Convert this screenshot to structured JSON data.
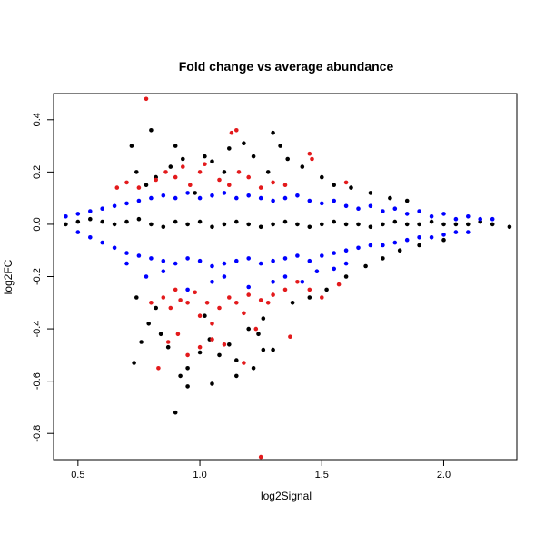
{
  "chart_data": {
    "type": "scatter",
    "title": "Fold change vs average abundance",
    "xlabel": "log2Signal",
    "ylabel": "log2FC",
    "xlim": [
      0.4,
      2.3
    ],
    "ylim": [
      -0.9,
      0.5
    ],
    "x_ticks": [
      0.5,
      1.0,
      1.5,
      2.0
    ],
    "x_tick_labels": [
      "0.5",
      "1.0",
      "1.5",
      "2.0"
    ],
    "y_ticks": [
      -0.8,
      -0.6,
      -0.4,
      -0.2,
      0.0,
      0.2,
      0.4
    ],
    "y_tick_labels": [
      "-0.8",
      "-0.6",
      "-0.4",
      "-0.2",
      "0.0",
      "0.2",
      "0.4"
    ],
    "grid": false,
    "legend": "none",
    "colors": {
      "black": "#000000",
      "blue": "#0000ff",
      "red": "#e31a1c"
    },
    "series": [
      {
        "color": "black",
        "x": [
          0.45,
          0.5,
          0.55,
          0.6,
          0.65,
          0.7,
          0.75,
          0.8,
          0.85,
          0.9,
          0.95,
          1.0,
          1.05,
          1.1,
          1.15,
          1.2,
          1.25,
          1.3,
          1.35,
          1.4,
          1.45,
          1.5,
          1.55,
          1.6,
          1.65,
          1.7,
          1.75,
          1.8,
          1.85,
          1.9,
          1.95,
          2.0,
          2.05,
          2.1,
          2.15,
          2.2,
          2.27,
          0.72,
          0.74,
          0.78,
          0.8,
          0.82,
          0.88,
          0.9,
          0.93,
          0.98,
          1.02,
          1.05,
          1.1,
          1.12,
          1.18,
          1.22,
          1.28,
          1.3,
          1.33,
          1.36,
          1.42,
          1.5,
          1.55,
          1.62,
          1.7,
          1.78,
          1.85,
          0.73,
          0.76,
          0.79,
          0.84,
          0.87,
          0.92,
          0.95,
          1.0,
          1.04,
          1.08,
          1.12,
          1.15,
          1.2,
          1.24,
          1.26,
          1.3,
          1.38,
          1.45,
          1.52,
          1.6,
          1.68,
          1.75,
          1.82,
          1.9,
          2.0,
          0.9,
          0.95,
          1.05,
          1.15,
          1.22,
          1.26,
          1.02,
          0.82,
          0.74
        ],
        "y": [
          0.0,
          0.01,
          0.02,
          0.01,
          0.0,
          0.01,
          0.02,
          0.0,
          -0.01,
          0.01,
          0.0,
          0.01,
          -0.01,
          0.0,
          0.01,
          0.0,
          -0.01,
          0.0,
          0.01,
          0.0,
          -0.01,
          0.0,
          0.01,
          0.0,
          0.0,
          -0.01,
          0.0,
          0.01,
          0.0,
          0.0,
          0.01,
          0.0,
          0.0,
          0.0,
          0.01,
          0.0,
          -0.01,
          0.3,
          0.2,
          0.15,
          0.36,
          0.18,
          0.22,
          0.3,
          0.25,
          0.12,
          0.26,
          0.24,
          0.2,
          0.29,
          0.31,
          0.26,
          0.2,
          0.35,
          0.3,
          0.25,
          0.22,
          0.18,
          0.15,
          0.14,
          0.12,
          0.1,
          0.09,
          -0.53,
          -0.45,
          -0.38,
          -0.42,
          -0.47,
          -0.58,
          -0.55,
          -0.49,
          -0.44,
          -0.5,
          -0.46,
          -0.52,
          -0.4,
          -0.42,
          -0.36,
          -0.48,
          -0.3,
          -0.28,
          -0.25,
          -0.2,
          -0.16,
          -0.13,
          -0.1,
          -0.08,
          -0.06,
          -0.72,
          -0.62,
          -0.61,
          -0.58,
          -0.55,
          -0.48,
          -0.35,
          -0.32,
          -0.28
        ]
      },
      {
        "color": "blue",
        "x": [
          0.45,
          0.5,
          0.55,
          0.6,
          0.65,
          0.7,
          0.75,
          0.8,
          0.85,
          0.9,
          0.95,
          1.0,
          1.05,
          1.1,
          1.15,
          1.2,
          1.25,
          1.3,
          1.35,
          1.4,
          1.45,
          1.5,
          1.55,
          1.6,
          1.65,
          1.7,
          1.75,
          1.8,
          1.85,
          1.9,
          1.95,
          2.0,
          2.05,
          2.1,
          2.15,
          2.2,
          0.5,
          0.55,
          0.6,
          0.65,
          0.7,
          0.75,
          0.8,
          0.85,
          0.9,
          0.95,
          1.0,
          1.05,
          1.1,
          1.15,
          1.2,
          1.25,
          1.3,
          1.35,
          1.4,
          1.45,
          1.5,
          1.55,
          1.6,
          1.65,
          1.7,
          1.75,
          1.8,
          1.85,
          1.9,
          1.95,
          2.0,
          2.05,
          2.1,
          0.7,
          0.78,
          0.85,
          0.95,
          1.05,
          1.1,
          1.2,
          1.3,
          1.35,
          1.42,
          1.48,
          1.55,
          1.6
        ],
        "y": [
          0.03,
          0.04,
          0.05,
          0.06,
          0.07,
          0.08,
          0.09,
          0.1,
          0.11,
          0.1,
          0.12,
          0.1,
          0.11,
          0.12,
          0.1,
          0.11,
          0.1,
          0.09,
          0.1,
          0.11,
          0.09,
          0.08,
          0.09,
          0.07,
          0.06,
          0.07,
          0.05,
          0.06,
          0.04,
          0.05,
          0.03,
          0.04,
          0.02,
          0.03,
          0.02,
          0.02,
          -0.03,
          -0.05,
          -0.07,
          -0.09,
          -0.11,
          -0.12,
          -0.13,
          -0.14,
          -0.15,
          -0.13,
          -0.14,
          -0.16,
          -0.15,
          -0.14,
          -0.13,
          -0.15,
          -0.14,
          -0.13,
          -0.12,
          -0.14,
          -0.12,
          -0.11,
          -0.1,
          -0.09,
          -0.08,
          -0.08,
          -0.07,
          -0.06,
          -0.05,
          -0.05,
          -0.04,
          -0.03,
          -0.03,
          -0.15,
          -0.2,
          -0.18,
          -0.25,
          -0.22,
          -0.2,
          -0.24,
          -0.22,
          -0.2,
          -0.22,
          -0.18,
          -0.17,
          -0.15
        ]
      },
      {
        "color": "red",
        "x": [
          0.78,
          0.66,
          0.7,
          0.75,
          0.82,
          0.86,
          0.9,
          0.93,
          0.96,
          1.0,
          1.02,
          1.08,
          1.12,
          1.16,
          1.2,
          1.25,
          1.3,
          1.35,
          1.45,
          1.6,
          1.13,
          1.15,
          1.46,
          0.8,
          0.85,
          0.88,
          0.9,
          0.92,
          0.95,
          0.98,
          1.0,
          1.03,
          1.05,
          1.08,
          1.12,
          1.15,
          1.18,
          1.2,
          1.25,
          1.28,
          1.3,
          1.35,
          1.4,
          1.45,
          1.5,
          1.57,
          1.25,
          0.83,
          0.87,
          0.91,
          0.95,
          1.0,
          1.05,
          1.1,
          1.18,
          1.23,
          1.37
        ],
        "y": [
          0.48,
          0.14,
          0.16,
          0.14,
          0.17,
          0.2,
          0.18,
          0.22,
          0.15,
          0.2,
          0.23,
          0.17,
          0.15,
          0.2,
          0.18,
          0.14,
          0.16,
          0.15,
          0.27,
          0.16,
          0.35,
          0.36,
          0.25,
          -0.3,
          -0.28,
          -0.32,
          -0.25,
          -0.29,
          -0.3,
          -0.26,
          -0.35,
          -0.3,
          -0.38,
          -0.32,
          -0.28,
          -0.3,
          -0.34,
          -0.27,
          -0.29,
          -0.3,
          -0.27,
          -0.25,
          -0.22,
          -0.25,
          -0.28,
          -0.23,
          -0.89,
          -0.55,
          -0.45,
          -0.42,
          -0.5,
          -0.47,
          -0.44,
          -0.46,
          -0.53,
          -0.4,
          -0.43
        ]
      }
    ]
  }
}
